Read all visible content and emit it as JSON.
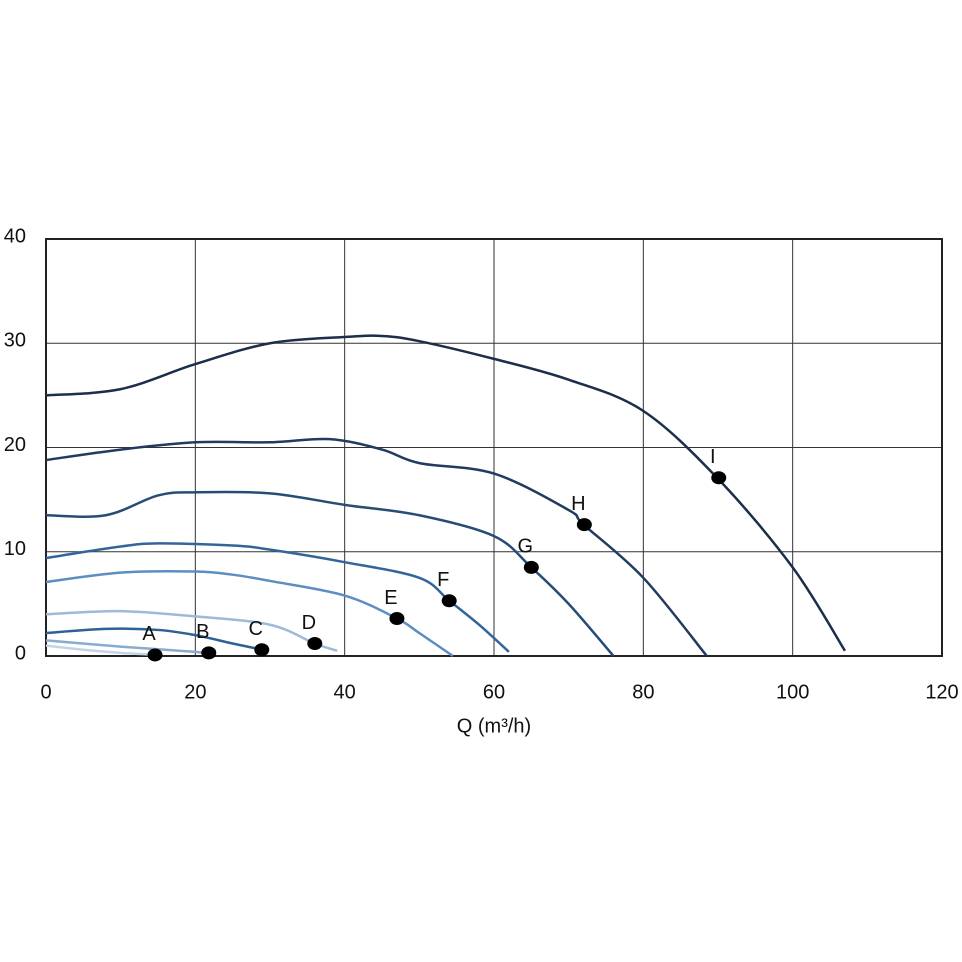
{
  "chart_data": {
    "type": "line",
    "x_label": "Q (m³/h)",
    "xlim": [
      0,
      120
    ],
    "xticks": [
      0,
      20,
      40,
      60,
      80,
      100,
      120
    ],
    "ylim": [
      0,
      40
    ],
    "yticks": [
      0,
      10,
      20,
      30,
      40
    ],
    "grid": true,
    "series": [
      {
        "name": "A",
        "color": "#c3d4e6",
        "x": [
          0,
          5,
          10,
          15
        ],
        "values": [
          1.0,
          0.6,
          0.3,
          0.1
        ],
        "marker_x": 14.6,
        "marker_y": 0.1
      },
      {
        "name": "B",
        "color": "#8aabcf",
        "x": [
          0,
          10,
          20,
          22
        ],
        "values": [
          1.5,
          0.9,
          0.4,
          0.2
        ],
        "marker_x": 21.8,
        "marker_y": 0.3
      },
      {
        "name": "C",
        "color": "#2f6096",
        "x": [
          0,
          8,
          15,
          20,
          25,
          29
        ],
        "values": [
          2.2,
          2.6,
          2.5,
          2.0,
          1.2,
          0.6
        ],
        "marker_x": 28.9,
        "marker_y": 0.6
      },
      {
        "name": "D",
        "color": "#9dbadb",
        "x": [
          0,
          10,
          20,
          30,
          36,
          39
        ],
        "values": [
          4.0,
          4.3,
          3.8,
          3.0,
          1.2,
          0.5
        ],
        "marker_x": 36,
        "marker_y": 1.2
      },
      {
        "name": "E",
        "color": "#5d8dc2",
        "x": [
          0,
          10,
          20,
          25,
          30,
          40,
          47,
          50,
          54.5
        ],
        "values": [
          7.1,
          8.0,
          8.1,
          7.8,
          7.2,
          5.8,
          3.6,
          2.2,
          0
        ],
        "marker_x": 47,
        "marker_y": 3.6
      },
      {
        "name": "F",
        "color": "#33659a",
        "x": [
          0,
          10,
          15,
          25,
          30,
          40,
          50,
          54,
          58,
          62
        ],
        "values": [
          9.4,
          10.5,
          10.8,
          10.6,
          10.2,
          9.0,
          7.5,
          5.3,
          3.0,
          0.4
        ],
        "marker_x": 54,
        "marker_y": 5.3
      },
      {
        "name": "G",
        "color": "#274c76",
        "x": [
          0,
          8,
          15,
          20,
          30,
          40,
          50,
          60,
          65,
          70,
          76
        ],
        "values": [
          13.5,
          13.5,
          15.4,
          15.7,
          15.6,
          14.5,
          13.5,
          11.5,
          8.5,
          5.0,
          0
        ],
        "marker_x": 65,
        "marker_y": 8.5
      },
      {
        "name": "H",
        "color": "#213c60",
        "x": [
          0,
          10,
          20,
          30,
          38,
          45,
          50,
          60,
          70,
          72,
          80,
          88.5
        ],
        "values": [
          18.8,
          19.8,
          20.5,
          20.5,
          20.8,
          19.8,
          18.5,
          17.5,
          14.0,
          12.6,
          7.5,
          0
        ],
        "marker_x": 72.1,
        "marker_y": 12.6
      },
      {
        "name": "I",
        "color": "#1c2e4a",
        "x": [
          0,
          10,
          20,
          30,
          40,
          45,
          50,
          60,
          70,
          80,
          90,
          100,
          107
        ],
        "values": [
          25.0,
          25.6,
          28.0,
          30.0,
          30.6,
          30.7,
          30.2,
          28.5,
          26.5,
          23.5,
          17.0,
          8.5,
          0.5
        ],
        "marker_x": 90.1,
        "marker_y": 17.1
      }
    ]
  }
}
